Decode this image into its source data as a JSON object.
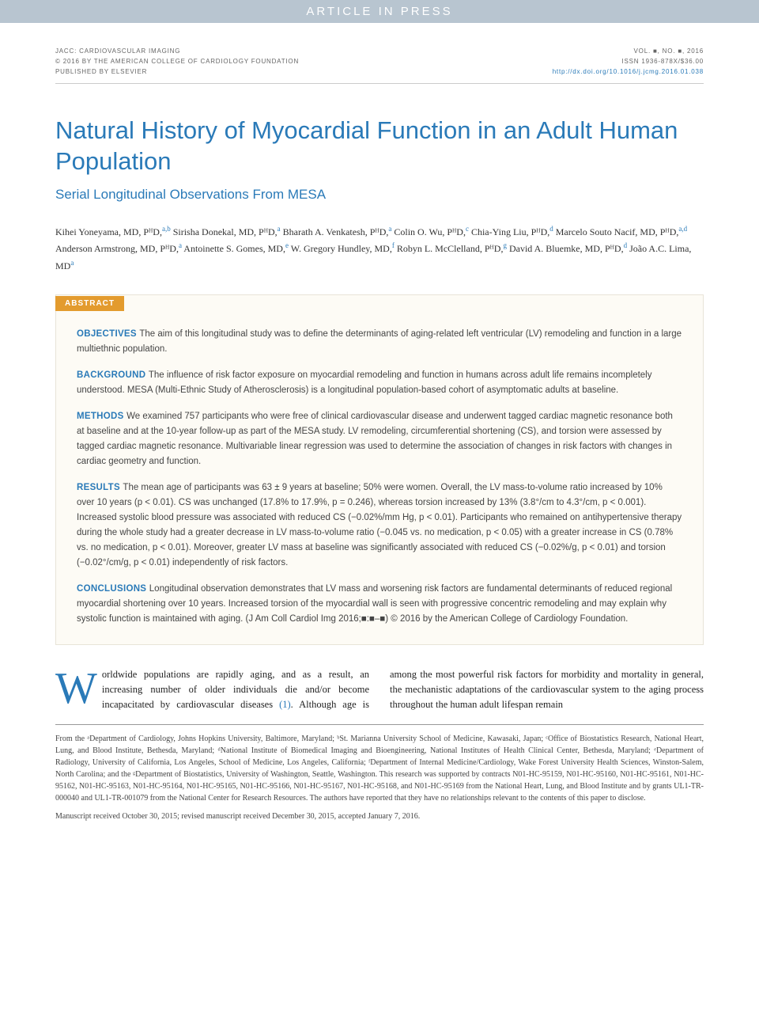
{
  "banner": "ARTICLE IN PRESS",
  "header": {
    "journal": "JACC: CARDIOVASCULAR IMAGING",
    "copyright": "© 2016 BY THE AMERICAN COLLEGE OF CARDIOLOGY FOUNDATION",
    "publisher": "PUBLISHED BY ELSEVIER",
    "volume": "VOL. ■, NO. ■, 2016",
    "issn": "ISSN 1936-878X/$36.00",
    "doi": "http://dx.doi.org/10.1016/j.jcmg.2016.01.038"
  },
  "title": "Natural History of Myocardial Function in an Adult Human Population",
  "subtitle": "Serial Longitudinal Observations From MESA",
  "authors_html": "Kihei Yoneyama, MD, PᴴD,<sup>a,b</sup> Sirisha Donekal, MD, PᴴD,<sup>a</sup> Bharath A. Venkatesh, PᴴD,<sup>a</sup> Colin O. Wu, PᴴD,<sup>c</sup> Chia-Ying Liu, PᴴD,<sup>d</sup> Marcelo Souto Nacif, MD, PᴴD,<sup>a,d</sup> Anderson Armstrong, MD, PᴴD,<sup>a</sup> Antoinette S. Gomes, MD,<sup>e</sup> W. Gregory Hundley, MD,<sup>f</sup> Robyn L. McClelland, PᴴD,<sup>g</sup> David A. Bluemke, MD, PᴴD,<sup>d</sup> João A.C. Lima, MD<sup>a</sup>",
  "abstract": {
    "label": "ABSTRACT",
    "sections": [
      {
        "heading": "OBJECTIVES",
        "text": "The aim of this longitudinal study was to define the determinants of aging-related left ventricular (LV) remodeling and function in a large multiethnic population."
      },
      {
        "heading": "BACKGROUND",
        "text": "The influence of risk factor exposure on myocardial remodeling and function in humans across adult life remains incompletely understood. MESA (Multi-Ethnic Study of Atherosclerosis) is a longitudinal population-based cohort of asymptomatic adults at baseline."
      },
      {
        "heading": "METHODS",
        "text": "We examined 757 participants who were free of clinical cardiovascular disease and underwent tagged cardiac magnetic resonance both at baseline and at the 10-year follow-up as part of the MESA study. LV remodeling, circumferential shortening (CS), and torsion were assessed by tagged cardiac magnetic resonance. Multivariable linear regression was used to determine the association of changes in risk factors with changes in cardiac geometry and function."
      },
      {
        "heading": "RESULTS",
        "text": "The mean age of participants was 63 ± 9 years at baseline; 50% were women. Overall, the LV mass-to-volume ratio increased by 10% over 10 years (p < 0.01). CS was unchanged (17.8% to 17.9%, p = 0.246), whereas torsion increased by 13% (3.8°/cm to 4.3°/cm, p < 0.001). Increased systolic blood pressure was associated with reduced CS (−0.02%/mm Hg, p < 0.01). Participants who remained on antihypertensive therapy during the whole study had a greater decrease in LV mass-to-volume ratio (−0.045 vs. no medication, p < 0.05) with a greater increase in CS (0.78% vs. no medication, p < 0.01). Moreover, greater LV mass at baseline was significantly associated with reduced CS (−0.02%/g, p < 0.01) and torsion (−0.02°/cm/g, p < 0.01) independently of risk factors."
      },
      {
        "heading": "CONCLUSIONS",
        "text": "Longitudinal observation demonstrates that LV mass and worsening risk factors are fundamental determinants of reduced regional myocardial shortening over 10 years. Increased torsion of the myocardial wall is seen with progressive concentric remodeling and may explain why systolic function is maintained with aging. (J Am Coll Cardiol Img 2016;■:■–■) © 2016 by the American College of Cardiology Foundation."
      }
    ]
  },
  "body": {
    "dropcap": "W",
    "text_after_dropcap": "orldwide populations are rapidly aging, and as a result, an increasing number of older individuals die and/or become incapacitated by cardiovascular diseases ",
    "ref": "(1)",
    "text_continue": ". Although age is among the most powerful risk factors for morbidity and mortality in general, the mechanistic adaptations of the cardiovascular system to the aging process throughout the human adult lifespan remain"
  },
  "affiliations": "From the ᵃDepartment of Cardiology, Johns Hopkins University, Baltimore, Maryland; ᵇSt. Marianna University School of Medicine, Kawasaki, Japan; ᶜOffice of Biostatistics Research, National Heart, Lung, and Blood Institute, Bethesda, Maryland; ᵈNational Institute of Biomedical Imaging and Bioengineering, National Institutes of Health Clinical Center, Bethesda, Maryland; ᵉDepartment of Radiology, University of California, Los Angeles, School of Medicine, Los Angeles, California; ᶠDepartment of Internal Medicine/Cardiology, Wake Forest University Health Sciences, Winston-Salem, North Carolina; and the ᵍDepartment of Biostatistics, University of Washington, Seattle, Washington. This research was supported by contracts N01-HC-95159, N01-HC-95160, N01-HC-95161, N01-HC-95162, N01-HC-95163, N01-HC-95164, N01-HC-95165, N01-HC-95166, N01-HC-95167, N01-HC-95168, and N01-HC-95169 from the National Heart, Lung, and Blood Institute and by grants UL1-TR-000040 and UL1-TR-001079 from the National Center for Research Resources. The authors have reported that they have no relationships relevant to the contents of this paper to disclose.",
  "manuscript": "Manuscript received October 30, 2015; revised manuscript received December 30, 2015, accepted January 7, 2016.",
  "colors": {
    "banner_bg": "#b8c5d0",
    "accent_blue": "#2a7ab8",
    "abstract_bg": "#fdfbf5",
    "abstract_label_bg": "#e39b2e"
  }
}
